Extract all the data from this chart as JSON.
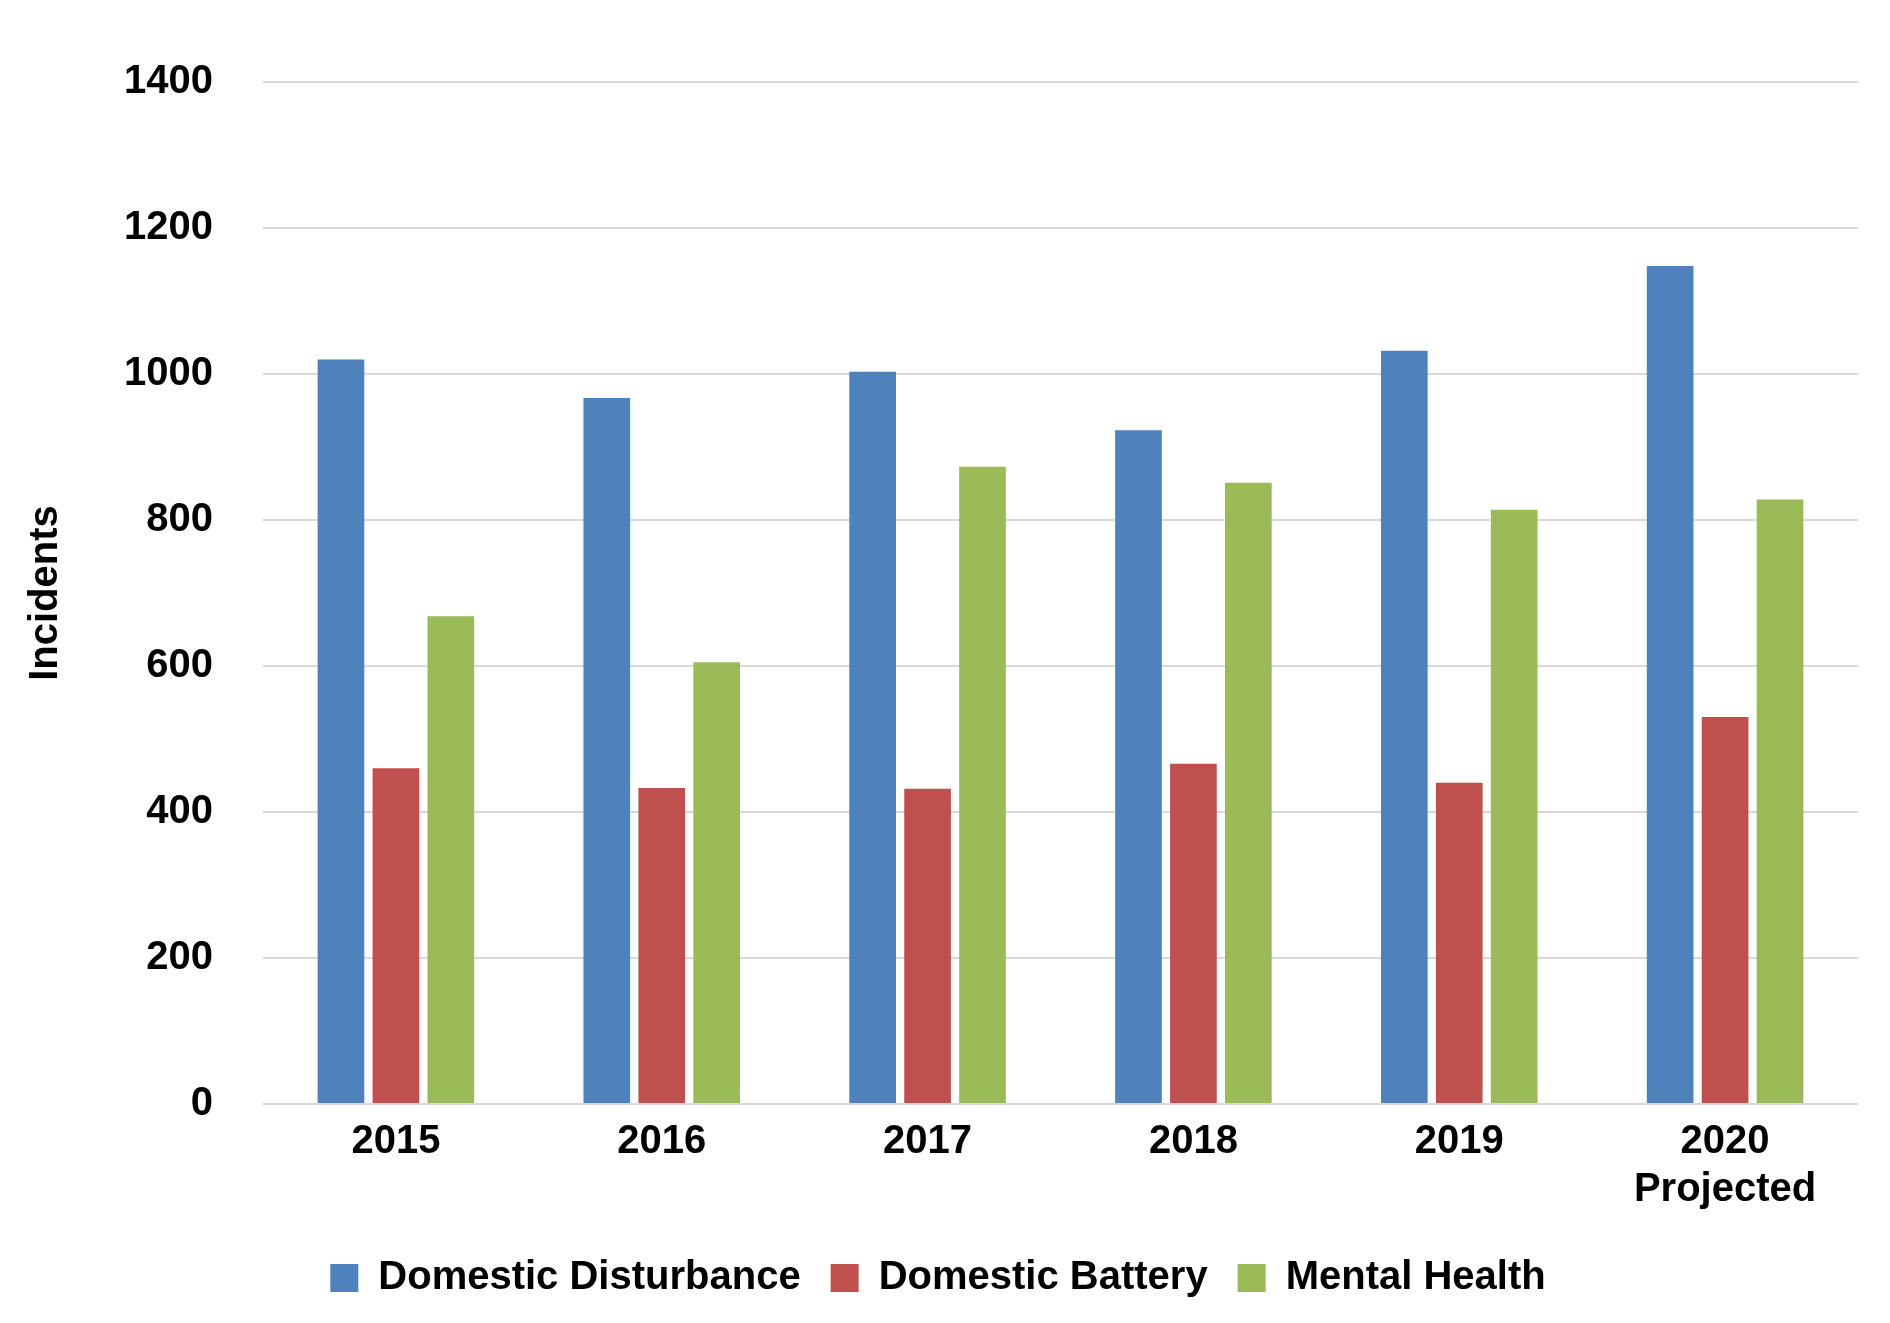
{
  "chart_data": {
    "type": "bar",
    "ylabel": "Incidents",
    "categories": [
      "2015",
      "2016",
      "2017",
      "2018",
      "2019",
      "2020\nProjected"
    ],
    "series": [
      {
        "name": "Domestic Disturbance",
        "color": "#4f81bd",
        "values": [
          1020,
          967,
          1003,
          923,
          1032,
          1148
        ]
      },
      {
        "name": "Domestic Battery",
        "color": "#c0504d",
        "values": [
          460,
          433,
          432,
          466,
          440,
          530
        ]
      },
      {
        "name": "Mental Health",
        "color": "#9bbb59",
        "values": [
          668,
          605,
          873,
          851,
          814,
          828
        ]
      }
    ],
    "ylim": [
      0,
      1400
    ],
    "yticks": [
      0,
      200,
      400,
      600,
      800,
      1000,
      1200,
      1400
    ],
    "grid": "y",
    "legend": "bottom"
  }
}
